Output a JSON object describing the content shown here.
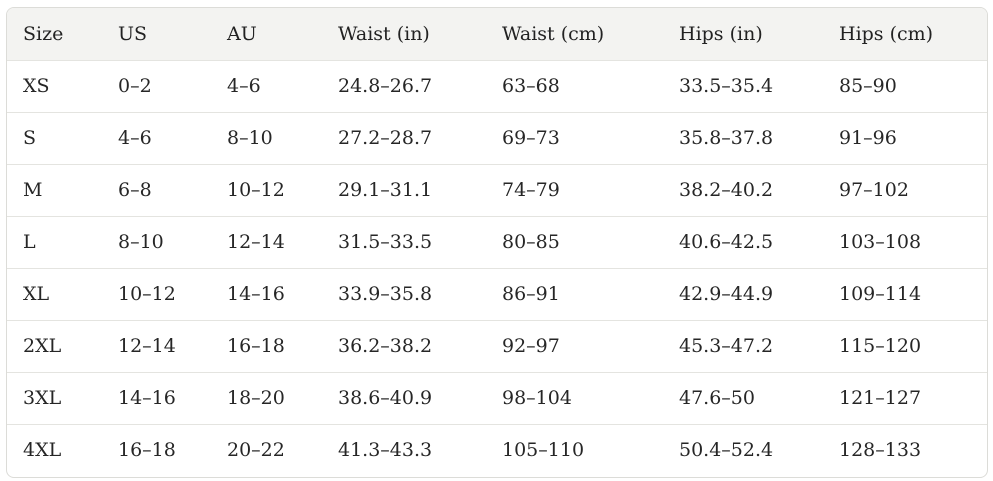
{
  "table": {
    "headers": [
      "Size",
      "US",
      "AU",
      "Waist (in)",
      "Waist (cm)",
      "Hips (in)",
      "Hips (cm)"
    ],
    "rows": [
      [
        "XS",
        "0–2",
        "4–6",
        "24.8–26.7",
        "63–68",
        "33.5–35.4",
        "85–90"
      ],
      [
        "S",
        "4–6",
        "8–10",
        "27.2–28.7",
        "69–73",
        "35.8–37.8",
        "91–96"
      ],
      [
        "M",
        "6–8",
        "10–12",
        "29.1–31.1",
        "74–79",
        "38.2–40.2",
        "97–102"
      ],
      [
        "L",
        "8–10",
        "12–14",
        "31.5–33.5",
        "80–85",
        "40.6–42.5",
        "103–108"
      ],
      [
        "XL",
        "10–12",
        "14–16",
        "33.9–35.8",
        "86–91",
        "42.9–44.9",
        "109–114"
      ],
      [
        "2XL",
        "12–14",
        "16–18",
        "36.2–38.2",
        "92–97",
        "45.3–47.2",
        "115–120"
      ],
      [
        "3XL",
        "14–16",
        "18–20",
        "38.6–40.9",
        "98–104",
        "47.6–50",
        "121–127"
      ],
      [
        "4XL",
        "16–18",
        "20–22",
        "41.3–43.3",
        "105–110",
        "50.4–52.4",
        "128–133"
      ]
    ]
  }
}
